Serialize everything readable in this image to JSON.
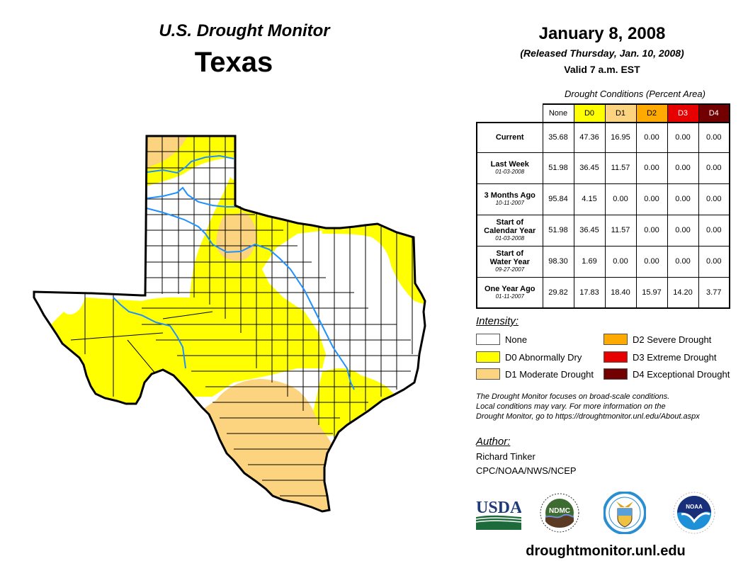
{
  "header": {
    "subtitle": "U.S. Drought Monitor",
    "state": "Texas",
    "date": "January 8, 2008",
    "released": "(Released Thursday, Jan. 10, 2008)",
    "valid": "Valid 7 a.m. EST"
  },
  "table": {
    "caption": "Drought Conditions (Percent Area)",
    "columns": [
      {
        "label": "None",
        "color": "#ffffff",
        "text_color": "#000000"
      },
      {
        "label": "D0",
        "color": "#ffff00",
        "text_color": "#000000"
      },
      {
        "label": "D1",
        "color": "#fcd37f",
        "text_color": "#000000"
      },
      {
        "label": "D2",
        "color": "#ffaa00",
        "text_color": "#000000"
      },
      {
        "label": "D3",
        "color": "#e60000",
        "text_color": "#ffffff"
      },
      {
        "label": "D4",
        "color": "#730000",
        "text_color": "#ffffff"
      }
    ],
    "rows": [
      {
        "label": "Current",
        "label2": "",
        "date": "",
        "values": [
          "35.68",
          "47.36",
          "16.95",
          "0.00",
          "0.00",
          "0.00"
        ]
      },
      {
        "label": "Last Week",
        "label2": "",
        "date": "01-03-2008",
        "values": [
          "51.98",
          "36.45",
          "11.57",
          "0.00",
          "0.00",
          "0.00"
        ]
      },
      {
        "label": "3 Months Ago",
        "label2": "",
        "date": "10-11-2007",
        "values": [
          "95.84",
          "4.15",
          "0.00",
          "0.00",
          "0.00",
          "0.00"
        ]
      },
      {
        "label": "Start of",
        "label2": "Calendar Year",
        "date": "01-03-2008",
        "values": [
          "51.98",
          "36.45",
          "11.57",
          "0.00",
          "0.00",
          "0.00"
        ]
      },
      {
        "label": "Start of",
        "label2": "Water Year",
        "date": "09-27-2007",
        "values": [
          "98.30",
          "1.69",
          "0.00",
          "0.00",
          "0.00",
          "0.00"
        ]
      },
      {
        "label": "One Year Ago",
        "label2": "",
        "date": "01-11-2007",
        "values": [
          "29.82",
          "17.83",
          "18.40",
          "15.97",
          "14.20",
          "3.77"
        ]
      }
    ]
  },
  "legend": {
    "title": "Intensity:",
    "items": [
      {
        "label": "None",
        "color": "#ffffff"
      },
      {
        "label": "D0 Abnormally Dry",
        "color": "#ffff00"
      },
      {
        "label": "D1 Moderate Drought",
        "color": "#fcd37f"
      },
      {
        "label": "D2 Severe Drought",
        "color": "#ffaa00"
      },
      {
        "label": "D3 Extreme Drought",
        "color": "#e60000"
      },
      {
        "label": "D4 Exceptional Drought",
        "color": "#730000"
      }
    ]
  },
  "note": {
    "line1": "The Drought Monitor focuses on broad-scale conditions.",
    "line2": "Local conditions may vary. For more information on the",
    "line3": "Drought Monitor, go to https://droughtmonitor.unl.edu/About.aspx"
  },
  "author": {
    "title": "Author:",
    "name": "Richard Tinker",
    "org": "CPC/NOAA/NWS/NCEP"
  },
  "logos": {
    "usda": "USDA",
    "ndmc": "NDMC",
    "noaa": "NOAA"
  },
  "footer": {
    "url": "droughtmonitor.unl.edu"
  },
  "map": {
    "colors": {
      "none": "#ffffff",
      "d0": "#ffff00",
      "d1": "#fcd37f",
      "river": "#1e90ff",
      "border": "#000000"
    }
  }
}
